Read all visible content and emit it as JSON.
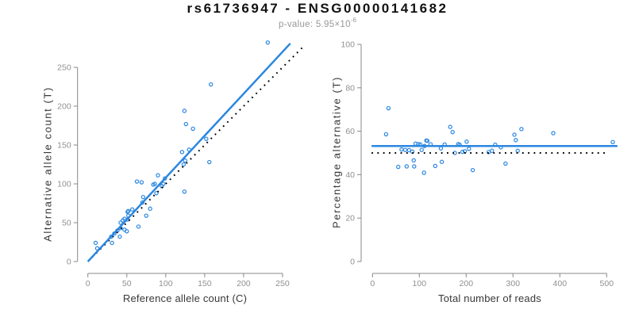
{
  "header": {
    "title": "rs61736947 - ENSG00000141682",
    "subtitle_prefix": "p-value: 5.95×10",
    "subtitle_exponent": "-6"
  },
  "colors": {
    "accent_blue": "#2B87E0",
    "identity_black": "#000000",
    "axis_gray": "#888888",
    "tick_label_gray": "#909090",
    "axis_title_dark": "#383838",
    "subtitle_gray": "#999999"
  },
  "chart_data": [
    {
      "id": "allele-count-scatter",
      "type": "scatter",
      "title": "",
      "xlabel": "Reference allele count (C)",
      "ylabel": "Alternative allele count (T)",
      "xlim": [
        0,
        280
      ],
      "ylim": [
        0,
        285
      ],
      "xticks": [
        0,
        50,
        100,
        150,
        200,
        250
      ],
      "yticks": [
        0,
        50,
        100,
        150,
        200,
        250
      ],
      "grid": false,
      "legend": "none",
      "marker": "open-circle",
      "points": [
        [
          12,
          17
        ],
        [
          10,
          24
        ],
        [
          31,
          24
        ],
        [
          30,
          32
        ],
        [
          34,
          36
        ],
        [
          41,
          32
        ],
        [
          38,
          40
        ],
        [
          42,
          43
        ],
        [
          47,
          41
        ],
        [
          50,
          39
        ],
        [
          42,
          50
        ],
        [
          45,
          53
        ],
        [
          47,
          55
        ],
        [
          51,
          54
        ],
        [
          65,
          45
        ],
        [
          52,
          59
        ],
        [
          51,
          64
        ],
        [
          52,
          65
        ],
        [
          57,
          67
        ],
        [
          75,
          59
        ],
        [
          80,
          68
        ],
        [
          70,
          76
        ],
        [
          71,
          83
        ],
        [
          63,
          103
        ],
        [
          69,
          102
        ],
        [
          88,
          88
        ],
        [
          84,
          99
        ],
        [
          86,
          100
        ],
        [
          95,
          97
        ],
        [
          97,
          100
        ],
        [
          90,
          111
        ],
        [
          99,
          107
        ],
        [
          124,
          90
        ],
        [
          123,
          125
        ],
        [
          125,
          130
        ],
        [
          121,
          141
        ],
        [
          130,
          144
        ],
        [
          156,
          128
        ],
        [
          126,
          177
        ],
        [
          135,
          171
        ],
        [
          152,
          158
        ],
        [
          124,
          194
        ],
        [
          158,
          228
        ],
        [
          231,
          282
        ]
      ],
      "fit_line": {
        "style": "solid",
        "slope": 1.08,
        "intercept": 0,
        "x_range": [
          0,
          260
        ]
      },
      "identity_line": {
        "style": "dotted",
        "slope": 1,
        "intercept": 0,
        "x_range": [
          0,
          279
        ]
      }
    },
    {
      "id": "percentage-alternative-scatter",
      "type": "scatter",
      "title": "",
      "xlabel": "Total number of reads",
      "ylabel": "Percentage alternative (T)",
      "xlim": [
        0,
        525
      ],
      "ylim": [
        0,
        100
      ],
      "xticks": [
        0,
        100,
        200,
        300,
        400,
        500
      ],
      "yticks": [
        0,
        20,
        40,
        60,
        80,
        100
      ],
      "grid": false,
      "legend": "none",
      "marker": "open-circle",
      "points": [
        [
          29,
          58.6
        ],
        [
          34,
          70.6
        ],
        [
          55,
          43.6
        ],
        [
          62,
          51.6
        ],
        [
          70,
          51.4
        ],
        [
          73,
          43.8
        ],
        [
          78,
          51.3
        ],
        [
          85,
          50.6
        ],
        [
          88,
          46.6
        ],
        [
          89,
          43.8
        ],
        [
          92,
          54.3
        ],
        [
          98,
          54.1
        ],
        [
          102,
          53.9
        ],
        [
          105,
          51.4
        ],
        [
          110,
          40.9
        ],
        [
          111,
          53.2
        ],
        [
          115,
          55.7
        ],
        [
          117,
          55.6
        ],
        [
          124,
          54.0
        ],
        [
          134,
          44.0
        ],
        [
          148,
          45.9
        ],
        [
          146,
          52.1
        ],
        [
          154,
          53.9
        ],
        [
          166,
          62.0
        ],
        [
          171,
          59.6
        ],
        [
          176,
          50.0
        ],
        [
          183,
          54.1
        ],
        [
          186,
          53.8
        ],
        [
          192,
          50.5
        ],
        [
          197,
          50.8
        ],
        [
          201,
          55.2
        ],
        [
          206,
          51.9
        ],
        [
          214,
          42.1
        ],
        [
          248,
          50.4
        ],
        [
          255,
          51.0
        ],
        [
          262,
          53.8
        ],
        [
          274,
          52.6
        ],
        [
          284,
          45.1
        ],
        [
          303,
          58.4
        ],
        [
          306,
          55.9
        ],
        [
          310,
          51.0
        ],
        [
          318,
          61.0
        ],
        [
          386,
          59.1
        ],
        [
          513,
          55.0
        ]
      ],
      "fit_line": {
        "style": "solid",
        "y": 53.2,
        "x_range": [
          -2,
          523
        ]
      },
      "identity_line": {
        "style": "dotted",
        "y": 50,
        "x_range": [
          -2,
          505
        ]
      }
    }
  ]
}
